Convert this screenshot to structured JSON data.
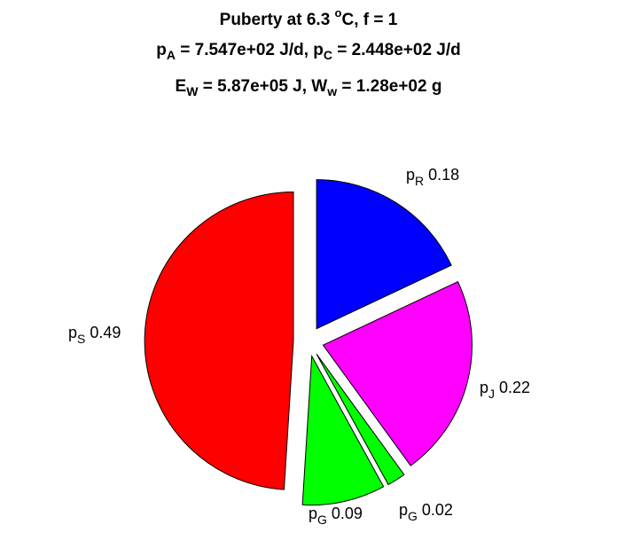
{
  "title": {
    "line1": {
      "pre": "Puberty at 6.3 ",
      "sup": "o",
      "post": "C, f = 1"
    },
    "line2": {
      "a_sym": "p",
      "a_sub": "A",
      "a_val": " = 7.547e+02 J/d,  ",
      "c_sym": "p",
      "c_sub": "C",
      "c_val": " = 2.448e+02 J/d"
    },
    "line3": {
      "e_sym": "E",
      "e_sub": "W",
      "e_val": " = 5.87e+05 J, ",
      "w_sym": "W",
      "w_sub": "w",
      "w_val": " = 1.28e+02 g"
    }
  },
  "chart_data": {
    "type": "pie",
    "start_angle_deg": 90,
    "direction": "clockwise",
    "exploded": true,
    "slices": [
      {
        "sym": "p",
        "sub": "R",
        "value": "0.18",
        "fraction": 0.18,
        "color": "#0000ff"
      },
      {
        "sym": "p",
        "sub": "J",
        "value": "0.22",
        "fraction": 0.22,
        "color": "#ff00ff"
      },
      {
        "sym": "p",
        "sub": "G",
        "value": "0.02",
        "fraction": 0.02,
        "color": "#00ff00"
      },
      {
        "sym": "p",
        "sub": "G",
        "value": "0.09",
        "fraction": 0.09,
        "color": "#00ff00"
      },
      {
        "sym": "p",
        "sub": "S",
        "value": "0.49",
        "fraction": 0.49,
        "color": "#ff0000"
      }
    ]
  }
}
